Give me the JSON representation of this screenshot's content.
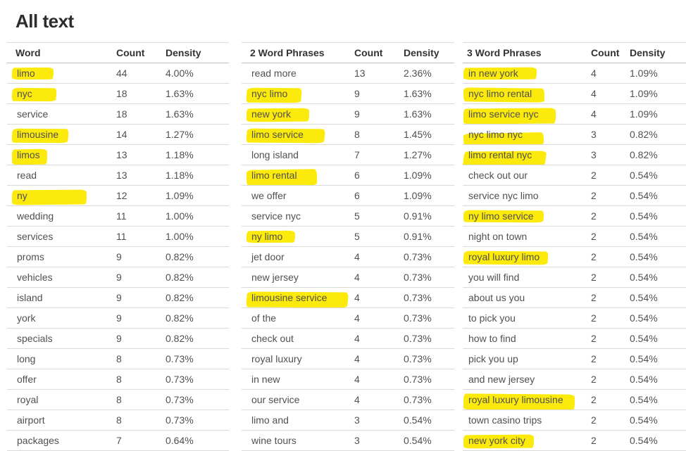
{
  "page": {
    "title": "All text",
    "highlight_color": "#fbea0b"
  },
  "tables": [
    {
      "headers": {
        "phrase": "Word",
        "count": "Count",
        "density": "Density"
      },
      "rows": [
        {
          "text": "limo",
          "count": "44",
          "density": "4.00%",
          "hl": true
        },
        {
          "text": "nyc",
          "count": "18",
          "density": "1.63%",
          "hl": true
        },
        {
          "text": "service",
          "count": "18",
          "density": "1.63%"
        },
        {
          "text": "limousine",
          "count": "14",
          "density": "1.27%",
          "hl": true
        },
        {
          "text": "limos",
          "count": "13",
          "density": "1.18%",
          "hl": true
        },
        {
          "text": "read",
          "count": "13",
          "density": "1.18%"
        },
        {
          "text": "ny",
          "count": "12",
          "density": "1.09%",
          "hl": true
        },
        {
          "text": "wedding",
          "count": "11",
          "density": "1.00%"
        },
        {
          "text": "services",
          "count": "11",
          "density": "1.00%"
        },
        {
          "text": "proms",
          "count": "9",
          "density": "0.82%"
        },
        {
          "text": "vehicles",
          "count": "9",
          "density": "0.82%"
        },
        {
          "text": "island",
          "count": "9",
          "density": "0.82%"
        },
        {
          "text": "york",
          "count": "9",
          "density": "0.82%"
        },
        {
          "text": "specials",
          "count": "9",
          "density": "0.82%"
        },
        {
          "text": "long",
          "count": "8",
          "density": "0.73%"
        },
        {
          "text": "offer",
          "count": "8",
          "density": "0.73%"
        },
        {
          "text": "royal",
          "count": "8",
          "density": "0.73%"
        },
        {
          "text": "airport",
          "count": "8",
          "density": "0.73%"
        },
        {
          "text": "packages",
          "count": "7",
          "density": "0.64%"
        }
      ]
    },
    {
      "headers": {
        "phrase": "2 Word Phrases",
        "count": "Count",
        "density": "Density"
      },
      "rows": [
        {
          "text": "read more",
          "count": "13",
          "density": "2.36%"
        },
        {
          "text": "nyc limo",
          "count": "9",
          "density": "1.63%",
          "hl": true
        },
        {
          "text": "new york",
          "count": "9",
          "density": "1.63%",
          "hl": true
        },
        {
          "text": "limo service",
          "count": "8",
          "density": "1.45%",
          "hl": true
        },
        {
          "text": "long island",
          "count": "7",
          "density": "1.27%"
        },
        {
          "text": "limo rental",
          "count": "6",
          "density": "1.09%",
          "hl": true
        },
        {
          "text": "we offer",
          "count": "6",
          "density": "1.09%"
        },
        {
          "text": "service nyc",
          "count": "5",
          "density": "0.91%"
        },
        {
          "text": "ny limo",
          "count": "5",
          "density": "0.91%",
          "hl": true
        },
        {
          "text": "jet door",
          "count": "4",
          "density": "0.73%"
        },
        {
          "text": "new jersey",
          "count": "4",
          "density": "0.73%"
        },
        {
          "text": "limousine service",
          "count": "4",
          "density": "0.73%",
          "hl": true
        },
        {
          "text": "of the",
          "count": "4",
          "density": "0.73%"
        },
        {
          "text": "check out",
          "count": "4",
          "density": "0.73%"
        },
        {
          "text": "royal luxury",
          "count": "4",
          "density": "0.73%"
        },
        {
          "text": "in new",
          "count": "4",
          "density": "0.73%"
        },
        {
          "text": "our service",
          "count": "4",
          "density": "0.73%"
        },
        {
          "text": "limo and",
          "count": "3",
          "density": "0.54%"
        },
        {
          "text": "wine tours",
          "count": "3",
          "density": "0.54%"
        }
      ]
    },
    {
      "headers": {
        "phrase": "3 Word Phrases",
        "count": "Count",
        "density": "Density"
      },
      "rows": [
        {
          "text": "in new york",
          "count": "4",
          "density": "1.09%",
          "hl": true
        },
        {
          "text": "nyc limo rental",
          "count": "4",
          "density": "1.09%",
          "hl": true
        },
        {
          "text": "limo service nyc",
          "count": "4",
          "density": "1.09%",
          "hl": true
        },
        {
          "text": "nyc limo nyc",
          "count": "3",
          "density": "0.82%",
          "hl": true
        },
        {
          "text": "limo rental nyc",
          "count": "3",
          "density": "0.82%",
          "hl": true
        },
        {
          "text": "check out our",
          "count": "2",
          "density": "0.54%"
        },
        {
          "text": "service nyc limo",
          "count": "2",
          "density": "0.54%"
        },
        {
          "text": "ny limo service",
          "count": "2",
          "density": "0.54%",
          "hl": true
        },
        {
          "text": "night on town",
          "count": "2",
          "density": "0.54%"
        },
        {
          "text": "royal luxury limo",
          "count": "2",
          "density": "0.54%",
          "hl": true
        },
        {
          "text": "you will find",
          "count": "2",
          "density": "0.54%"
        },
        {
          "text": "about us you",
          "count": "2",
          "density": "0.54%"
        },
        {
          "text": "to pick you",
          "count": "2",
          "density": "0.54%"
        },
        {
          "text": "how to find",
          "count": "2",
          "density": "0.54%"
        },
        {
          "text": "pick you up",
          "count": "2",
          "density": "0.54%"
        },
        {
          "text": "and new jersey",
          "count": "2",
          "density": "0.54%"
        },
        {
          "text": "royal luxury limousine",
          "count": "2",
          "density": "0.54%",
          "hl": true
        },
        {
          "text": "town casino trips",
          "count": "2",
          "density": "0.54%"
        },
        {
          "text": "new york city",
          "count": "2",
          "density": "0.54%",
          "hl": true
        }
      ]
    }
  ]
}
